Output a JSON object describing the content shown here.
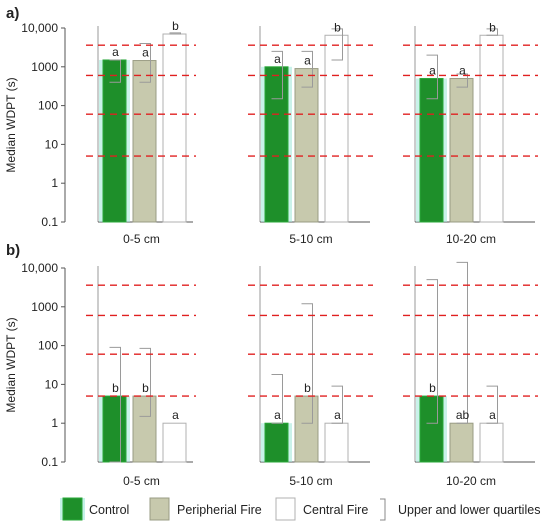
{
  "panels": [
    {
      "label": "a)",
      "ylabel": "Median WDPT (s)",
      "yscale": "log",
      "ylim": [
        0.1,
        10000
      ],
      "yticks": [
        "10,000",
        "1000",
        "100",
        "10",
        "1",
        "0.1"
      ],
      "reference_lines": [
        3600,
        600,
        60,
        5
      ],
      "groups": [
        {
          "name": "0-5 cm",
          "bars": [
            {
              "series": "Control",
              "median": 1500,
              "lower": 400,
              "upper": 1500,
              "letter": "a"
            },
            {
              "series": "Peripherial Fire",
              "median": 1450,
              "lower": 400,
              "upper": 4000,
              "letter": "a"
            },
            {
              "series": "Central Fire",
              "median": 7000,
              "lower": 7000,
              "upper": 7500,
              "letter": "b"
            }
          ]
        },
        {
          "name": "5-10 cm",
          "bars": [
            {
              "series": "Control",
              "median": 1000,
              "lower": 150,
              "upper": 2500,
              "letter": "a"
            },
            {
              "series": "Peripherial Fire",
              "median": 900,
              "lower": 300,
              "upper": 2500,
              "letter": "a"
            },
            {
              "series": "Central Fire",
              "median": 6500,
              "lower": 1500,
              "upper": 9500,
              "letter": "b"
            }
          ]
        },
        {
          "name": "10-20 cm",
          "bars": [
            {
              "series": "Control",
              "median": 500,
              "lower": 150,
              "upper": 2000,
              "letter": "a"
            },
            {
              "series": "Peripherial Fire",
              "median": 500,
              "lower": 300,
              "upper": 650,
              "letter": "a"
            },
            {
              "series": "Central Fire",
              "median": 6500,
              "lower": 6500,
              "upper": 9500,
              "letter": "b"
            }
          ]
        }
      ]
    },
    {
      "label": "b)",
      "ylabel": "Median WDPT (s)",
      "yscale": "log",
      "ylim": [
        0.1,
        10000
      ],
      "yticks": [
        "10,000",
        "1000",
        "100",
        "10",
        "1",
        "0.1"
      ],
      "reference_lines": [
        3600,
        600,
        60,
        5
      ],
      "groups": [
        {
          "name": "0-5 cm",
          "bars": [
            {
              "series": "Control",
              "median": 5,
              "lower": 0.1,
              "upper": 90,
              "letter": "b"
            },
            {
              "series": "Peripherial Fire",
              "median": 5,
              "lower": 1.5,
              "upper": 85,
              "letter": "b"
            },
            {
              "series": "Central Fire",
              "median": 1,
              "lower": 1,
              "upper": 1,
              "letter": "a"
            }
          ]
        },
        {
          "name": "5-10 cm",
          "bars": [
            {
              "series": "Control",
              "median": 1,
              "lower": 1,
              "upper": 18,
              "letter": "a"
            },
            {
              "series": "Peripherial Fire",
              "median": 5,
              "lower": 1,
              "upper": 1200,
              "letter": "b"
            },
            {
              "series": "Central Fire",
              "median": 1,
              "lower": 1,
              "upper": 9,
              "letter": "a"
            }
          ]
        },
        {
          "name": "10-20 cm",
          "bars": [
            {
              "series": "Control",
              "median": 5,
              "lower": 1,
              "upper": 5000,
              "letter": "b"
            },
            {
              "series": "Peripherial Fire",
              "median": 1,
              "lower": 1,
              "upper": 14000,
              "letter": "ab"
            },
            {
              "series": "Central Fire",
              "median": 1,
              "lower": 1,
              "upper": 9,
              "letter": "a"
            }
          ]
        }
      ]
    }
  ],
  "legend": [
    {
      "name": "Control",
      "color": "#1e8f2a",
      "edge": "#2aa83a",
      "halo": "#9fe8d8"
    },
    {
      "name": "Peripherial Fire",
      "color": "#c7c9ad",
      "edge": "#9a9c84",
      "halo": ""
    },
    {
      "name": "Central Fire",
      "color": "#ffffff",
      "edge": "#b0b0b0",
      "halo": ""
    },
    {
      "name": "Upper and lower quartiles",
      "color": "",
      "edge": "#888888",
      "halo": ""
    }
  ],
  "reference_line_color": "#e02020",
  "chart_data": [
    {
      "type": "bar",
      "title": "a)",
      "ylabel": "Median WDPT (s)",
      "yscale": "log",
      "ylim": [
        0.1,
        10000
      ],
      "categories": [
        "0-5 cm",
        "5-10 cm",
        "10-20 cm"
      ],
      "series": [
        {
          "name": "Control",
          "values": [
            1500,
            1000,
            500
          ]
        },
        {
          "name": "Peripherial Fire",
          "values": [
            1450,
            900,
            500
          ]
        },
        {
          "name": "Central Fire",
          "values": [
            7000,
            6500,
            6500
          ]
        }
      ],
      "reference_lines": [
        3600,
        600,
        60,
        5
      ]
    },
    {
      "type": "bar",
      "title": "b)",
      "ylabel": "Median WDPT (s)",
      "yscale": "log",
      "ylim": [
        0.1,
        10000
      ],
      "categories": [
        "0-5 cm",
        "5-10 cm",
        "10-20 cm"
      ],
      "series": [
        {
          "name": "Control",
          "values": [
            5,
            1,
            5
          ]
        },
        {
          "name": "Peripherial Fire",
          "values": [
            5,
            5,
            1
          ]
        },
        {
          "name": "Central Fire",
          "values": [
            1,
            1,
            1
          ]
        }
      ],
      "reference_lines": [
        3600,
        600,
        60,
        5
      ]
    }
  ]
}
